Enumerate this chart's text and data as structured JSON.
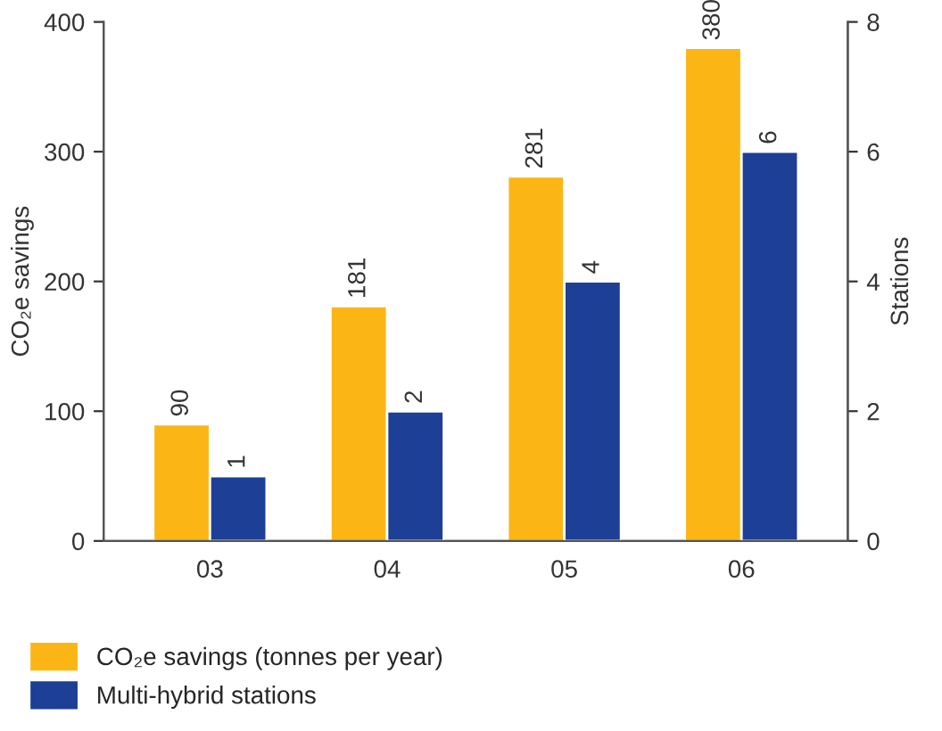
{
  "chart_data": {
    "type": "bar",
    "categories": [
      "03",
      "04",
      "05",
      "06"
    ],
    "ylabel": "CO₂e savings",
    "y2label": "Stations",
    "series": [
      {
        "name": "CO₂e savings (tonnes per year)",
        "color": "#fbb616",
        "values": [
          90,
          181,
          281,
          380
        ]
      },
      {
        "name": "Multi-hybrid stations",
        "color": "#1e3f96",
        "values": [
          1,
          2,
          4,
          6
        ],
        "axis": "y2"
      }
    ],
    "ylim": [
      0,
      400
    ],
    "yticks": [
      0,
      100,
      200,
      300,
      400
    ],
    "y2lim": [
      0,
      8
    ],
    "y2ticks": [
      0,
      2,
      4,
      6,
      8
    ],
    "data_labels": true,
    "grid": false,
    "legend": "bottom"
  }
}
